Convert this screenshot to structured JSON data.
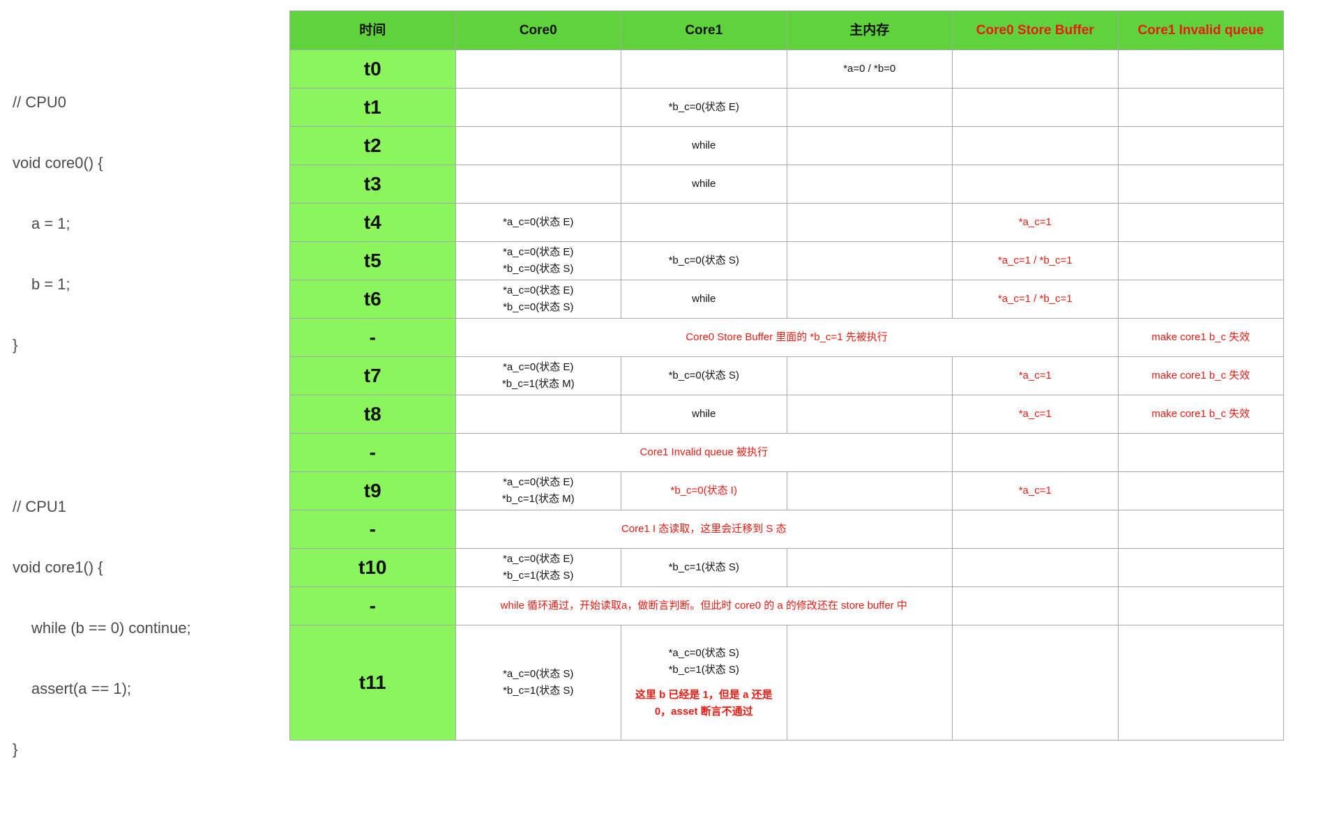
{
  "code": {
    "cpu0": {
      "comment": "// CPU0",
      "signature": "void core0() {",
      "body": [
        "a = 1;",
        "b = 1;"
      ],
      "close": "}"
    },
    "cpu1": {
      "comment": "// CPU1",
      "signature": "void core1() {",
      "body": [
        "while (b == 0) continue;",
        "assert(a == 1);"
      ],
      "close": "}"
    }
  },
  "table": {
    "headers": [
      "时间",
      "Core0",
      "Core1",
      "主内存",
      "Core0 Store Buffer",
      "Core1 Invalid queue"
    ],
    "rows": [
      {
        "time": "t0",
        "memory": "*a=0 / *b=0"
      },
      {
        "time": "t1",
        "core1": "*b_c=0(状态 E)"
      },
      {
        "time": "t2",
        "core1": "while"
      },
      {
        "time": "t3",
        "core1": "while"
      },
      {
        "time": "t4",
        "core0": "*a_c=0(状态 E)",
        "store_buffer": "*a_c=1"
      },
      {
        "time": "t5",
        "core0": "*a_c=0(状态 E)\n*b_c=0(状态 S)",
        "core1": "*b_c=0(状态 S)",
        "store_buffer": "*a_c=1 / *b_c=1"
      },
      {
        "time": "t6",
        "core0": "*a_c=0(状态 E)\n*b_c=0(状态 S)",
        "core1": "while",
        "store_buffer": "*a_c=1 / *b_c=1"
      },
      {
        "time": "-",
        "note": "Core0 Store Buffer 里面的 *b_c=1 先被执行",
        "invalid_queue": "make core1 b_c 失效"
      },
      {
        "time": "t7",
        "core0": "*a_c=0(状态 E)\n*b_c=1(状态 M)",
        "core1": "*b_c=0(状态 S)",
        "store_buffer": "*a_c=1",
        "invalid_queue": "make core1 b_c 失效"
      },
      {
        "time": "t8",
        "core1": "while",
        "store_buffer": "*a_c=1",
        "invalid_queue": "make core1 b_c 失效"
      },
      {
        "time": "-",
        "note": "Core1 Invalid queue 被执行"
      },
      {
        "time": "t9",
        "core0": "*a_c=0(状态 E)\n*b_c=1(状态 M)",
        "core1": "*b_c=0(状态 I)",
        "store_buffer": "*a_c=1"
      },
      {
        "time": "-",
        "note": "Core1 I 态读取，这里会迁移到 S 态"
      },
      {
        "time": "t10",
        "core0": "*a_c=0(状态 E)\n*b_c=1(状态 S)",
        "core1": "*b_c=1(状态 S)"
      },
      {
        "time": "-",
        "note": "while 循环通过，开始读取a，做断言判断。但此时 core0 的 a 的修改还在 store buffer 中"
      },
      {
        "time": "t11",
        "core0": "*a_c=0(状态 S)\n*b_c=1(状态 S)",
        "core1": "*a_c=0(状态 S)\n*b_c=1(状态 S)",
        "core1_remark": "这里 b 已经是 1，但是 a 还是\n0，asset 断言不通过"
      }
    ]
  },
  "colors": {
    "header_bg": "#5ed33b",
    "time_bg": "#8af55c",
    "highlight": "#ea1b10",
    "grid": "#a9a9a9",
    "code_text": "#4a4a4a"
  }
}
